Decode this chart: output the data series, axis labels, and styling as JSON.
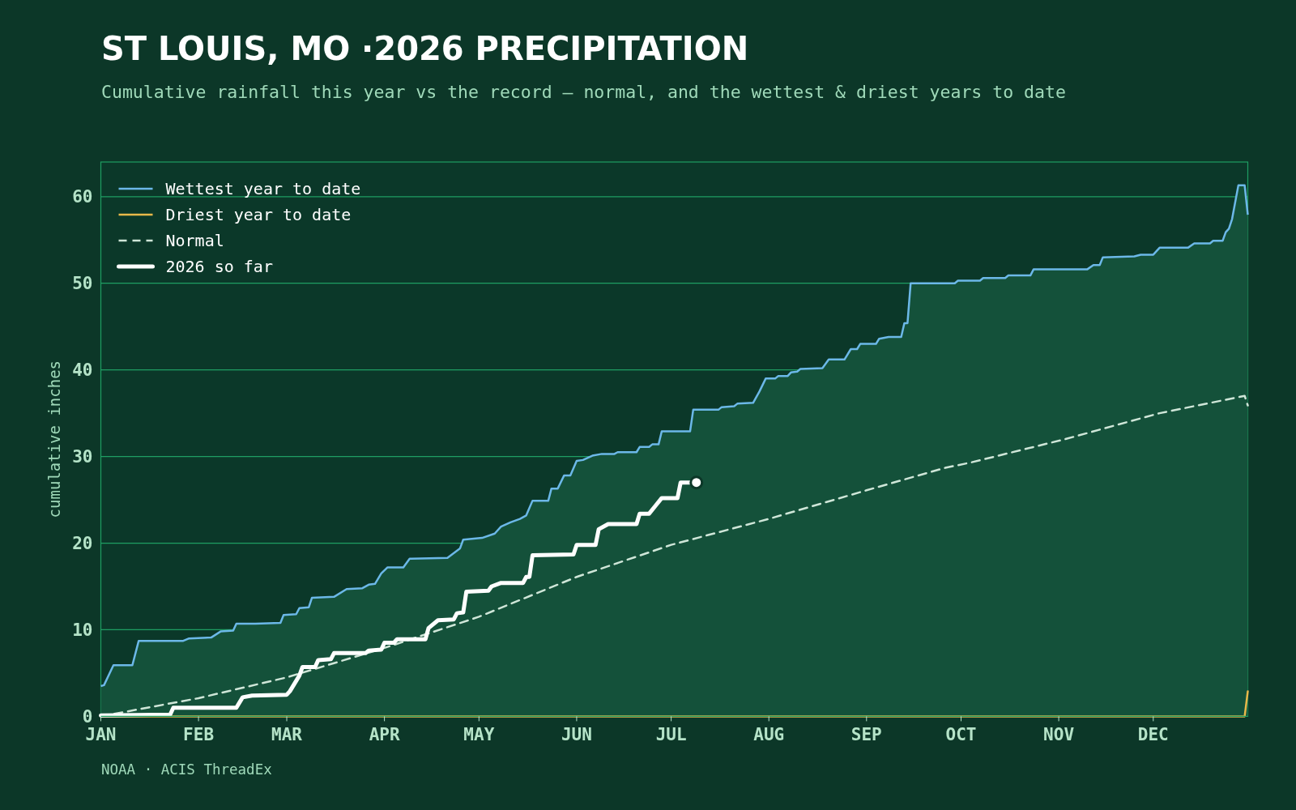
{
  "chart_data": {
    "type": "line",
    "title": "ST LOUIS, MO ·2026 PRECIPITATION",
    "subtitle": "Cumulative rainfall this year vs the record — normal, and the wettest & driest years to date",
    "ylabel": "cumulative inches",
    "annotations": [
      "NOAA · ACIS ThreadEx"
    ],
    "xlim": [
      "--01-01",
      "--12-31"
    ],
    "ylim": [
      0,
      64
    ],
    "xticks": [
      {
        "value": "--01-01",
        "label": "JAN"
      },
      {
        "value": "--02-01",
        "label": "FEB"
      },
      {
        "value": "--03-01",
        "label": "MAR"
      },
      {
        "value": "--04-01",
        "label": "APR"
      },
      {
        "value": "--05-01",
        "label": "MAY"
      },
      {
        "value": "--06-01",
        "label": "JUN"
      },
      {
        "value": "--07-01",
        "label": "JUL"
      },
      {
        "value": "--08-01",
        "label": "AUG"
      },
      {
        "value": "--09-01",
        "label": "SEP"
      },
      {
        "value": "--10-01",
        "label": "OCT"
      },
      {
        "value": "--11-01",
        "label": "NOV"
      },
      {
        "value": "--12-01",
        "label": "DEC"
      }
    ],
    "yticks": [
      0,
      10,
      20,
      30,
      40,
      50,
      60
    ],
    "grid": "y",
    "legend": "top left",
    "series": [
      {
        "name": "Wettest year to date",
        "type": "area",
        "color": "#6cb8e8",
        "x": [
          "--01-01",
          "--01-02",
          "--01-05",
          "--01-11",
          "--01-13",
          "--01-27",
          "--01-29",
          "--02-05",
          "--02-08",
          "--02-12",
          "--02-13",
          "--02-19",
          "--02-27",
          "--02-28",
          "--03-04",
          "--03-05",
          "--03-08",
          "--03-09",
          "--03-16",
          "--03-20",
          "--03-25",
          "--03-27",
          "--03-29",
          "--03-31",
          "--04-02",
          "--04-07",
          "--04-09",
          "--04-21",
          "--04-25",
          "--04-26",
          "--05-02",
          "--05-06",
          "--05-08",
          "--05-11",
          "--05-14",
          "--05-16",
          "--05-18",
          "--05-23",
          "--05-24",
          "--05-26",
          "--05-28",
          "--05-30",
          "--06-01",
          "--06-03",
          "--06-06",
          "--06-09",
          "--06-13",
          "--06-14",
          "--06-20",
          "--06-21",
          "--06-24",
          "--06-25",
          "--06-27",
          "--06-28",
          "--07-07",
          "--07-08",
          "--07-16",
          "--07-17",
          "--07-21",
          "--07-22",
          "--07-27",
          "--07-29",
          "--07-31",
          "--08-03",
          "--08-04",
          "--08-07",
          "--08-08",
          "--08-10",
          "--08-11",
          "--08-18",
          "--08-20",
          "--08-25",
          "--08-27",
          "--08-29",
          "--08-30",
          "--09-04",
          "--09-05",
          "--09-08",
          "--09-12",
          "--09-13",
          "--09-14",
          "--09-15",
          "--09-29",
          "--09-30",
          "--10-07",
          "--10-08",
          "--10-15",
          "--10-16",
          "--10-23",
          "--10-24",
          "--11-10",
          "--11-12",
          "--11-14",
          "--11-15",
          "--11-25",
          "--11-27",
          "--12-01",
          "--12-03",
          "--12-12",
          "--12-14",
          "--12-19",
          "--12-20",
          "--12-23",
          "--12-24",
          "--12-25",
          "--12-26",
          "--12-28",
          "--12-30",
          "--12-31"
        ],
        "values": [
          3.5,
          3.6,
          5.9,
          5.9,
          8.7,
          8.7,
          9.0,
          9.1,
          9.8,
          9.9,
          10.7,
          10.7,
          10.8,
          11.7,
          11.8,
          12.5,
          12.6,
          13.7,
          13.8,
          14.7,
          14.8,
          15.2,
          15.3,
          16.5,
          17.2,
          17.2,
          18.2,
          18.3,
          19.4,
          20.4,
          20.6,
          21.1,
          21.9,
          22.4,
          22.8,
          23.2,
          24.9,
          24.9,
          26.3,
          26.3,
          27.8,
          27.8,
          29.5,
          29.6,
          30.1,
          30.3,
          30.3,
          30.5,
          30.5,
          31.1,
          31.1,
          31.4,
          31.4,
          32.9,
          32.9,
          35.4,
          35.4,
          35.7,
          35.8,
          36.1,
          36.2,
          37.5,
          39.0,
          39.0,
          39.3,
          39.3,
          39.7,
          39.8,
          40.1,
          40.2,
          41.2,
          41.2,
          42.4,
          42.4,
          43.0,
          43.0,
          43.6,
          43.8,
          43.8,
          45.4,
          45.4,
          50.0,
          50.0,
          50.3,
          50.3,
          50.6,
          50.6,
          50.9,
          50.9,
          51.6,
          51.6,
          52.1,
          52.1,
          53.0,
          53.1,
          53.3,
          53.3,
          54.1,
          54.1,
          54.6,
          54.6,
          54.9,
          54.9,
          55.9,
          56.3,
          57.4,
          61.3,
          61.3,
          57.9
        ]
      },
      {
        "name": "Driest year to date",
        "color": "#e8b84a",
        "x": [
          "--01-01",
          "--12-30",
          "--12-31"
        ],
        "values": [
          0,
          0,
          2.9
        ]
      },
      {
        "name": "Normal",
        "line_style": "dashed",
        "color": "#cfe6d8",
        "x": [
          "--01-01",
          "--02-01",
          "--03-01",
          "--04-01",
          "--05-01",
          "--06-01",
          "--07-01",
          "--08-01",
          "--09-01",
          "--09-26",
          "--10-04",
          "--11-03",
          "--12-03",
          "--12-30",
          "--12-31"
        ],
        "values": [
          0,
          2.1,
          4.5,
          7.9,
          11.5,
          16.1,
          19.8,
          22.8,
          26.1,
          28.7,
          29.3,
          32.0,
          35.0,
          37.0,
          35.9
        ]
      },
      {
        "name": "2026 so far",
        "color": "#ffffff",
        "x": [
          "--01-01",
          "--01-23",
          "--01-24",
          "--02-13",
          "--02-15",
          "--02-18",
          "--03-01",
          "--03-02",
          "--03-05",
          "--03-06",
          "--03-10",
          "--03-11",
          "--03-15",
          "--03-16",
          "--03-26",
          "--03-27",
          "--03-31",
          "--04-01",
          "--04-04",
          "--04-05",
          "--04-14",
          "--04-15",
          "--04-18",
          "--04-23",
          "--04-24",
          "--04-26",
          "--04-27",
          "--05-04",
          "--05-05",
          "--05-08",
          "--05-15",
          "--05-16",
          "--05-17",
          "--05-18",
          "--05-31",
          "--06-01",
          "--06-07",
          "--06-08",
          "--06-11",
          "--06-20",
          "--06-21",
          "--06-24",
          "--06-26",
          "--06-28",
          "--07-03",
          "--07-04",
          "--07-07"
        ],
        "values": [
          0.1,
          0.2,
          1.0,
          1.0,
          2.2,
          2.4,
          2.5,
          2.9,
          4.7,
          5.7,
          5.7,
          6.5,
          6.6,
          7.3,
          7.3,
          7.6,
          7.7,
          8.5,
          8.5,
          8.9,
          8.9,
          10.2,
          11.1,
          11.2,
          11.9,
          12.0,
          14.4,
          14.5,
          15.0,
          15.4,
          15.4,
          16.1,
          16.1,
          18.6,
          18.7,
          19.8,
          19.8,
          21.6,
          22.2,
          22.2,
          23.4,
          23.4,
          24.3,
          25.2,
          25.2,
          27.0,
          27.0
        ]
      },
      {
        "type": "scatter",
        "color": "#ffffff",
        "x": [
          "--07-09"
        ],
        "values": [
          27.0
        ]
      }
    ]
  }
}
